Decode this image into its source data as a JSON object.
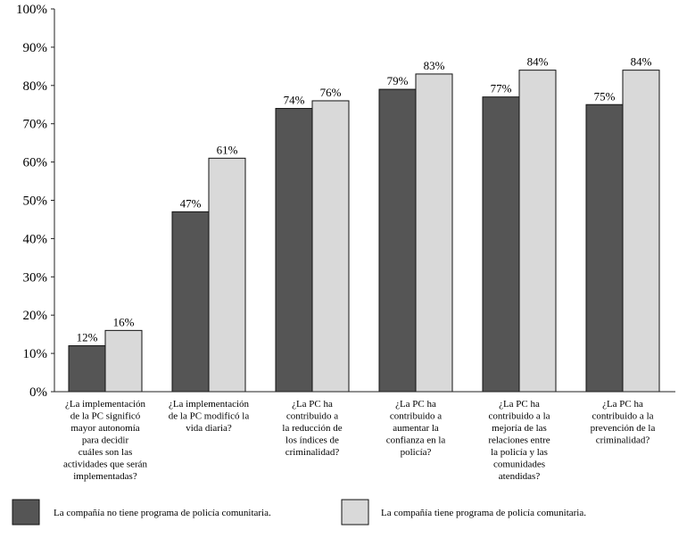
{
  "colors": {
    "series_dark": "#555555",
    "series_light": "#d9d9d9",
    "axis": "#222222",
    "bar_stroke": "#111111"
  },
  "chart_data": {
    "type": "bar",
    "ylim": [
      0,
      100
    ],
    "yticks": [
      0,
      10,
      20,
      30,
      40,
      50,
      60,
      70,
      80,
      90,
      100
    ],
    "ytick_labels": [
      "0%",
      "10%",
      "20%",
      "30%",
      "40%",
      "50%",
      "60%",
      "70%",
      "80%",
      "90%",
      "100%"
    ],
    "grid": false,
    "legend_position": "bottom",
    "categories": [
      [
        "¿La implementación",
        "de la PC significó",
        "mayor autonomía",
        "para decidir",
        "cuáles son las",
        "actividades que serán",
        "implementadas?"
      ],
      [
        "¿La implementación",
        "de la PC modificó la",
        "vida diaria?"
      ],
      [
        "¿La PC ha",
        "contribuido a",
        "la reducción de",
        "los índices de",
        "criminalidad?"
      ],
      [
        "¿La PC ha",
        "contribuido a",
        "aumentar la",
        "confianza en la",
        "policía?"
      ],
      [
        "¿La PC ha",
        "contribuido a la",
        "mejoría de las",
        "relaciones entre",
        "la policía y las",
        "comunidades",
        "atendidas?"
      ],
      [
        "¿La PC ha",
        "contribuido a la",
        "prevención de la",
        "criminalidad?"
      ]
    ],
    "series": [
      {
        "name": "La compañía no tiene programa de policía comunitaria.",
        "values": [
          12,
          47,
          74,
          79,
          77,
          75
        ],
        "labels": [
          "12%",
          "47%",
          "74%",
          "79%",
          "77%",
          "75%"
        ]
      },
      {
        "name": "La compañía tiene programa de policía comunitaria.",
        "values": [
          16,
          61,
          76,
          83,
          84,
          84
        ],
        "labels": [
          "16%",
          "61%",
          "76%",
          "83%",
          "84%",
          "84%"
        ]
      }
    ]
  }
}
